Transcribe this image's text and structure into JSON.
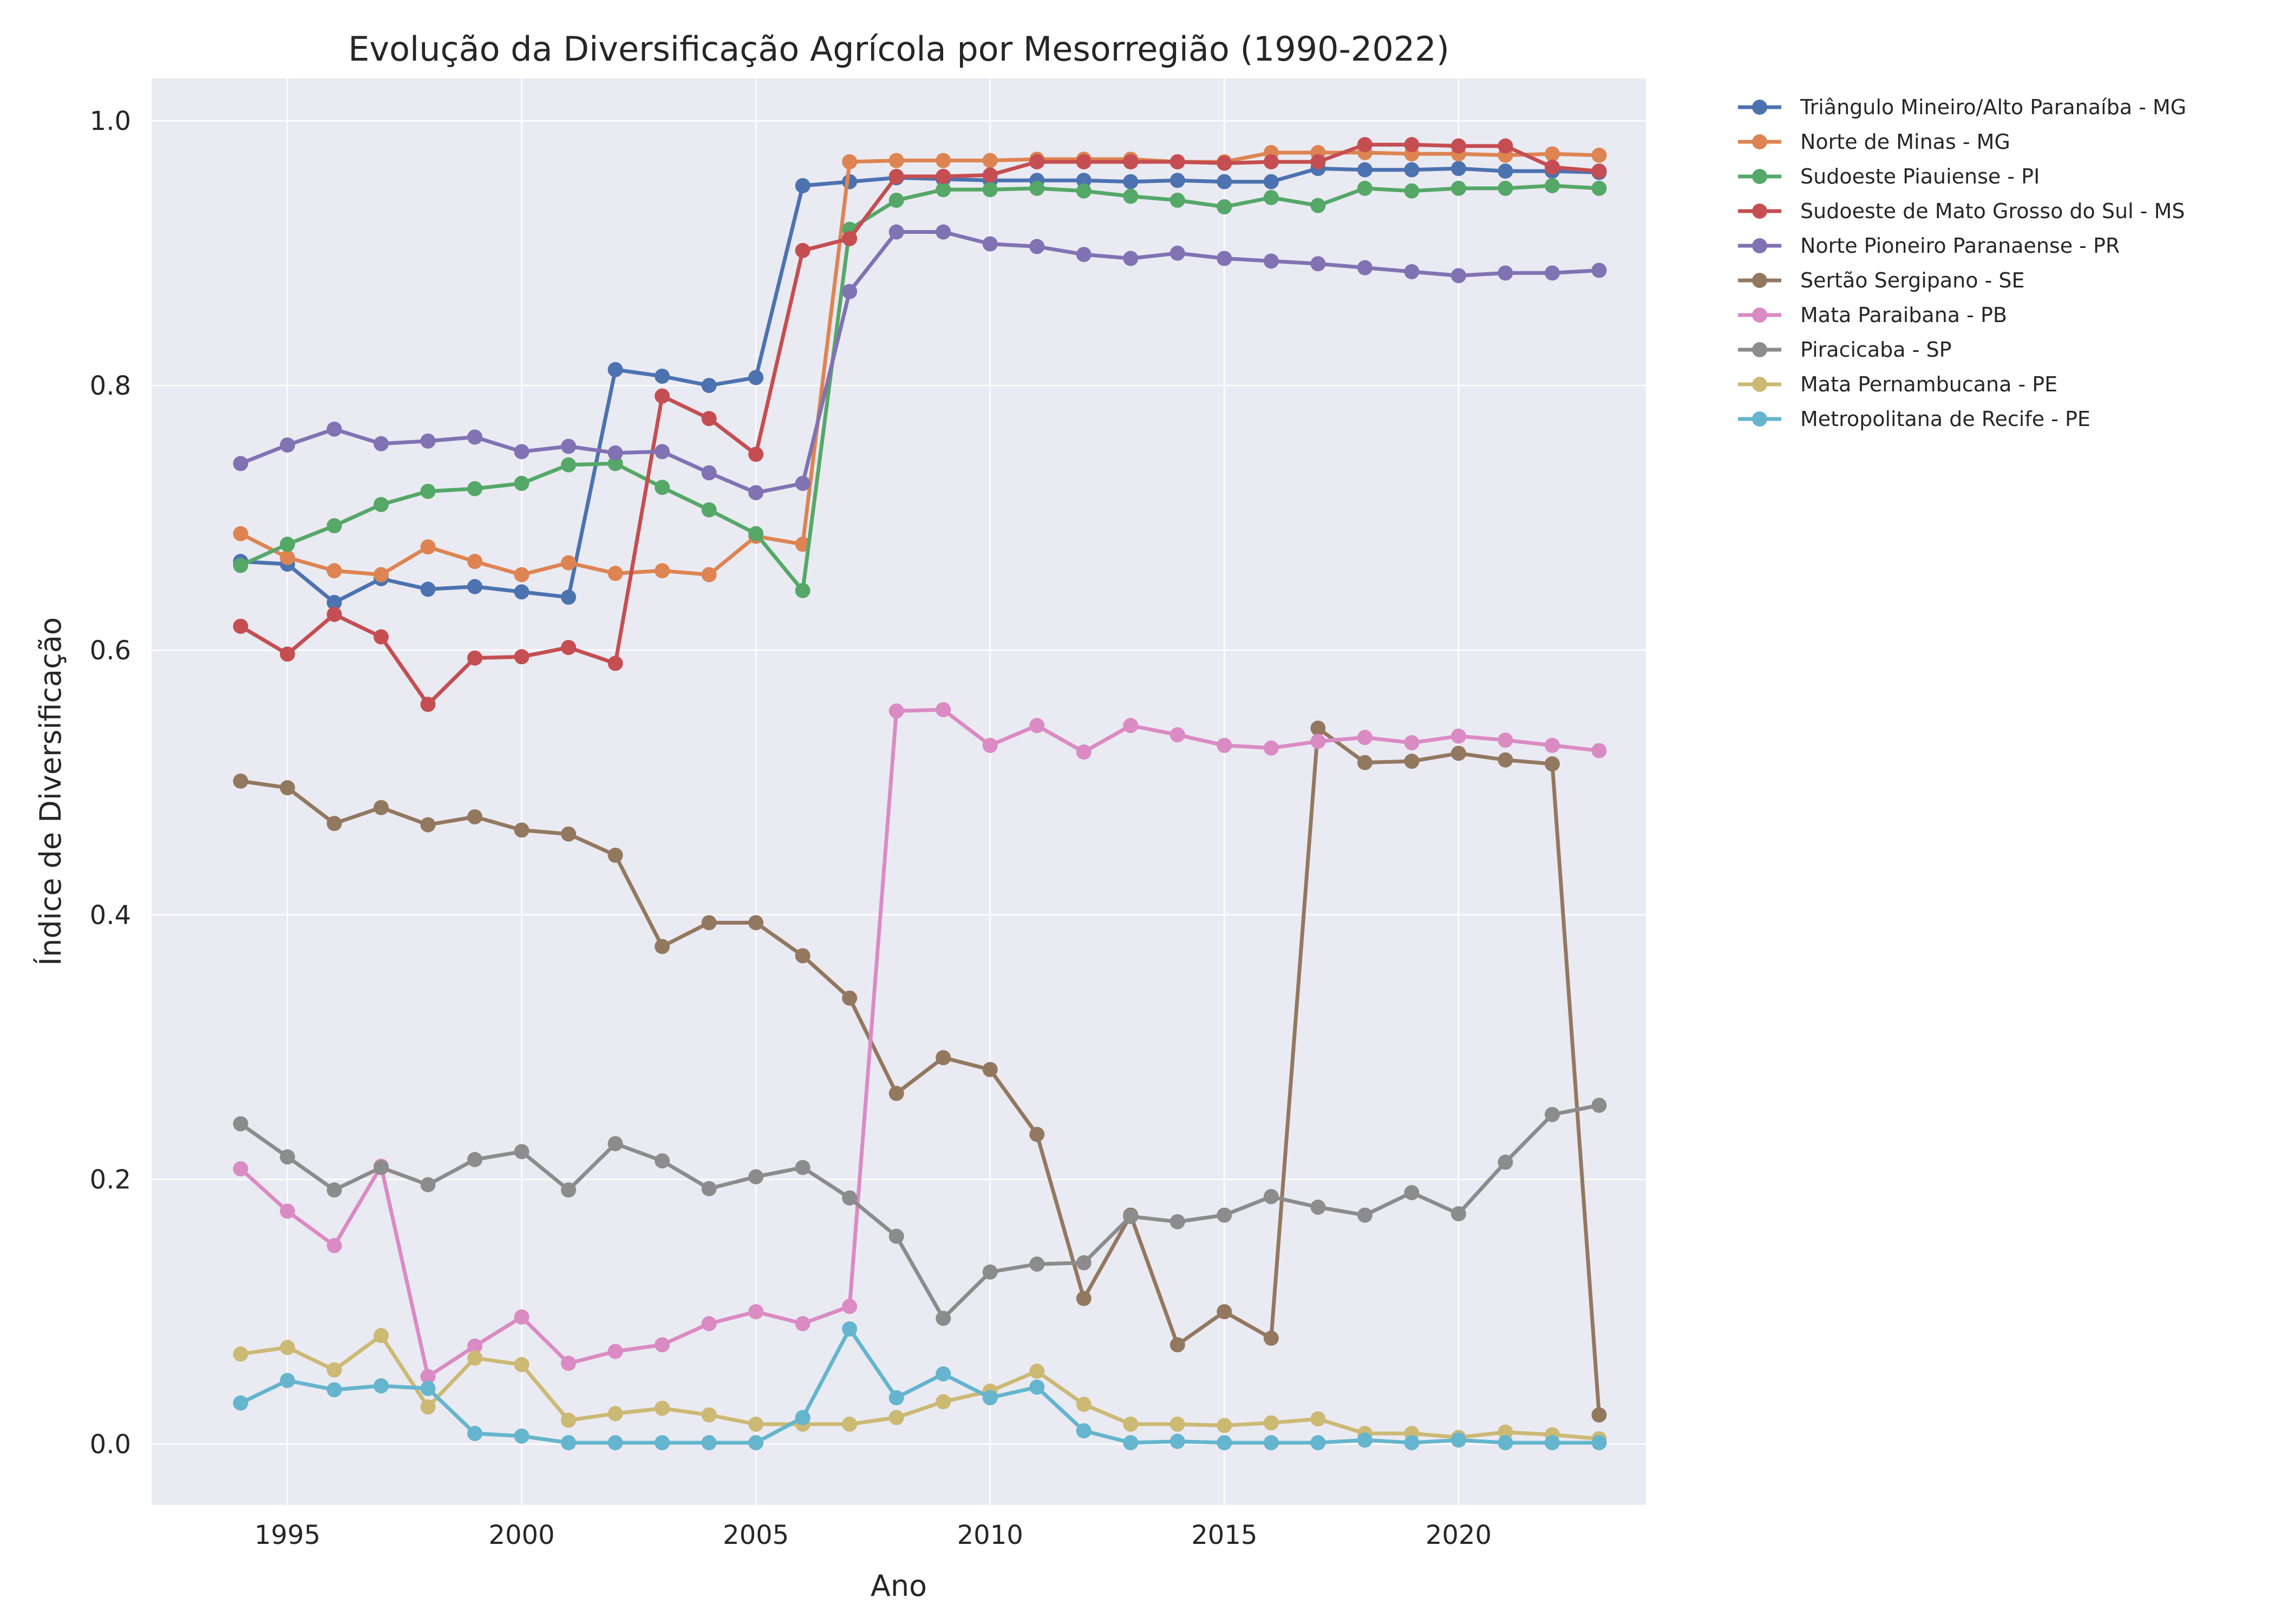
{
  "chart_data": {
    "type": "line",
    "title": "Evolução da Diversificação Agrícola por Mesorregião (1990-2022)",
    "xlabel": "Ano",
    "ylabel": "Índice de Diversificação",
    "xlim": [
      1992.1,
      2024.0
    ],
    "ylim": [
      -0.046,
      1.032
    ],
    "xticks": [
      1995,
      2000,
      2005,
      2010,
      2015,
      2020
    ],
    "yticks": [
      0.0,
      0.2,
      0.4,
      0.6,
      0.8,
      1.0
    ],
    "ytick_labels": [
      "0.0",
      "0.2",
      "0.4",
      "0.6",
      "0.8",
      "1.0"
    ],
    "grid": true,
    "legend_position": "outside-right-top",
    "x": [
      1994,
      1995,
      1996,
      1997,
      1998,
      1999,
      2000,
      2001,
      2002,
      2003,
      2004,
      2005,
      2006,
      2007,
      2008,
      2009,
      2010,
      2011,
      2012,
      2013,
      2014,
      2015,
      2016,
      2017,
      2018,
      2019,
      2020,
      2021,
      2022,
      2023
    ],
    "series": [
      {
        "name": "Triângulo Mineiro/Alto Paranaíba - MG",
        "color": "#4c72b0",
        "values": [
          0.667,
          0.665,
          0.636,
          0.654,
          0.646,
          0.648,
          0.644,
          0.64,
          0.812,
          0.807,
          0.8,
          0.806,
          0.951,
          0.954,
          0.957,
          0.956,
          0.955,
          0.955,
          0.955,
          0.954,
          0.955,
          0.954,
          0.954,
          0.964,
          0.963,
          0.963,
          0.964,
          0.962,
          0.962,
          0.961
        ]
      },
      {
        "name": "Norte de Minas - MG",
        "color": "#dd8452",
        "values": [
          0.688,
          0.67,
          0.66,
          0.657,
          0.678,
          0.667,
          0.657,
          0.666,
          0.658,
          0.66,
          0.657,
          0.686,
          0.68,
          0.969,
          0.97,
          0.97,
          0.97,
          0.971,
          0.971,
          0.971,
          0.969,
          0.969,
          0.976,
          0.976,
          0.976,
          0.975,
          0.975,
          0.974,
          0.975,
          0.974
        ]
      },
      {
        "name": "Sudoeste Piauiense - PI",
        "color": "#55a868",
        "values": [
          0.664,
          0.68,
          0.694,
          0.71,
          0.72,
          0.722,
          0.726,
          0.74,
          0.741,
          0.723,
          0.706,
          0.688,
          0.645,
          0.918,
          0.94,
          0.948,
          0.948,
          0.949,
          0.947,
          0.943,
          0.94,
          0.935,
          0.942,
          0.936,
          0.949,
          0.947,
          0.949,
          0.949,
          0.951,
          0.949
        ]
      },
      {
        "name": "Sudoeste de Mato Grosso do Sul - MS",
        "color": "#c44e52",
        "values": [
          0.618,
          0.597,
          0.627,
          0.61,
          0.559,
          0.594,
          0.595,
          0.602,
          0.59,
          0.792,
          0.775,
          0.748,
          0.902,
          0.911,
          0.958,
          0.958,
          0.959,
          0.969,
          0.969,
          0.969,
          0.969,
          0.968,
          0.969,
          0.969,
          0.982,
          0.982,
          0.981,
          0.981,
          0.965,
          0.962
        ]
      },
      {
        "name": "Norte Pioneiro Paranaense - PR",
        "color": "#8172b3",
        "values": [
          0.741,
          0.755,
          0.767,
          0.756,
          0.758,
          0.761,
          0.75,
          0.754,
          0.749,
          0.75,
          0.734,
          0.719,
          0.726,
          0.871,
          0.916,
          0.916,
          0.907,
          0.905,
          0.899,
          0.896,
          0.9,
          0.896,
          0.894,
          0.892,
          0.889,
          0.886,
          0.883,
          0.885,
          0.885,
          0.887
        ]
      },
      {
        "name": "Sertão Sergipano - SE",
        "color": "#937860",
        "values": [
          0.501,
          0.496,
          0.469,
          0.481,
          0.468,
          0.474,
          0.464,
          0.461,
          0.445,
          0.376,
          0.394,
          0.394,
          0.369,
          0.337,
          0.265,
          0.292,
          0.283,
          0.234,
          0.11,
          0.173,
          0.075,
          0.1,
          0.08,
          0.541,
          0.515,
          0.516,
          0.522,
          0.517,
          0.514,
          0.022
        ]
      },
      {
        "name": "Mata Paraibana - PB",
        "color": "#da8bc3",
        "values": [
          0.208,
          0.176,
          0.15,
          0.21,
          0.051,
          0.074,
          0.096,
          0.061,
          0.07,
          0.075,
          0.091,
          0.1,
          0.091,
          0.104,
          0.554,
          0.555,
          0.528,
          0.543,
          0.523,
          0.543,
          0.536,
          0.528,
          0.526,
          0.531,
          0.534,
          0.53,
          0.535,
          0.532,
          0.528,
          0.524
        ]
      },
      {
        "name": "Piracicaba - SP",
        "color": "#8c8c8c",
        "values": [
          0.242,
          0.217,
          0.192,
          0.209,
          0.196,
          0.215,
          0.221,
          0.192,
          0.227,
          0.214,
          0.193,
          0.202,
          0.209,
          0.186,
          0.157,
          0.095,
          0.13,
          0.136,
          0.137,
          0.172,
          0.168,
          0.173,
          0.187,
          0.179,
          0.173,
          0.19,
          0.174,
          0.213,
          0.249,
          0.256
        ]
      },
      {
        "name": "Mata Pernambucana - PE",
        "color": "#ccb974",
        "values": [
          0.068,
          0.073,
          0.056,
          0.082,
          0.028,
          0.065,
          0.06,
          0.018,
          0.023,
          0.027,
          0.022,
          0.015,
          0.015,
          0.015,
          0.02,
          0.032,
          0.04,
          0.055,
          0.03,
          0.015,
          0.015,
          0.014,
          0.016,
          0.019,
          0.008,
          0.008,
          0.005,
          0.009,
          0.007,
          0.004
        ]
      },
      {
        "name": "Metropolitana de Recife - PE",
        "color": "#64b5cd",
        "values": [
          0.031,
          0.048,
          0.041,
          0.044,
          0.042,
          0.008,
          0.006,
          0.001,
          0.001,
          0.001,
          0.001,
          0.001,
          0.02,
          0.087,
          0.035,
          0.053,
          0.035,
          0.043,
          0.01,
          0.001,
          0.002,
          0.001,
          0.001,
          0.001,
          0.003,
          0.001,
          0.003,
          0.001,
          0.001,
          0.001
        ]
      }
    ]
  }
}
